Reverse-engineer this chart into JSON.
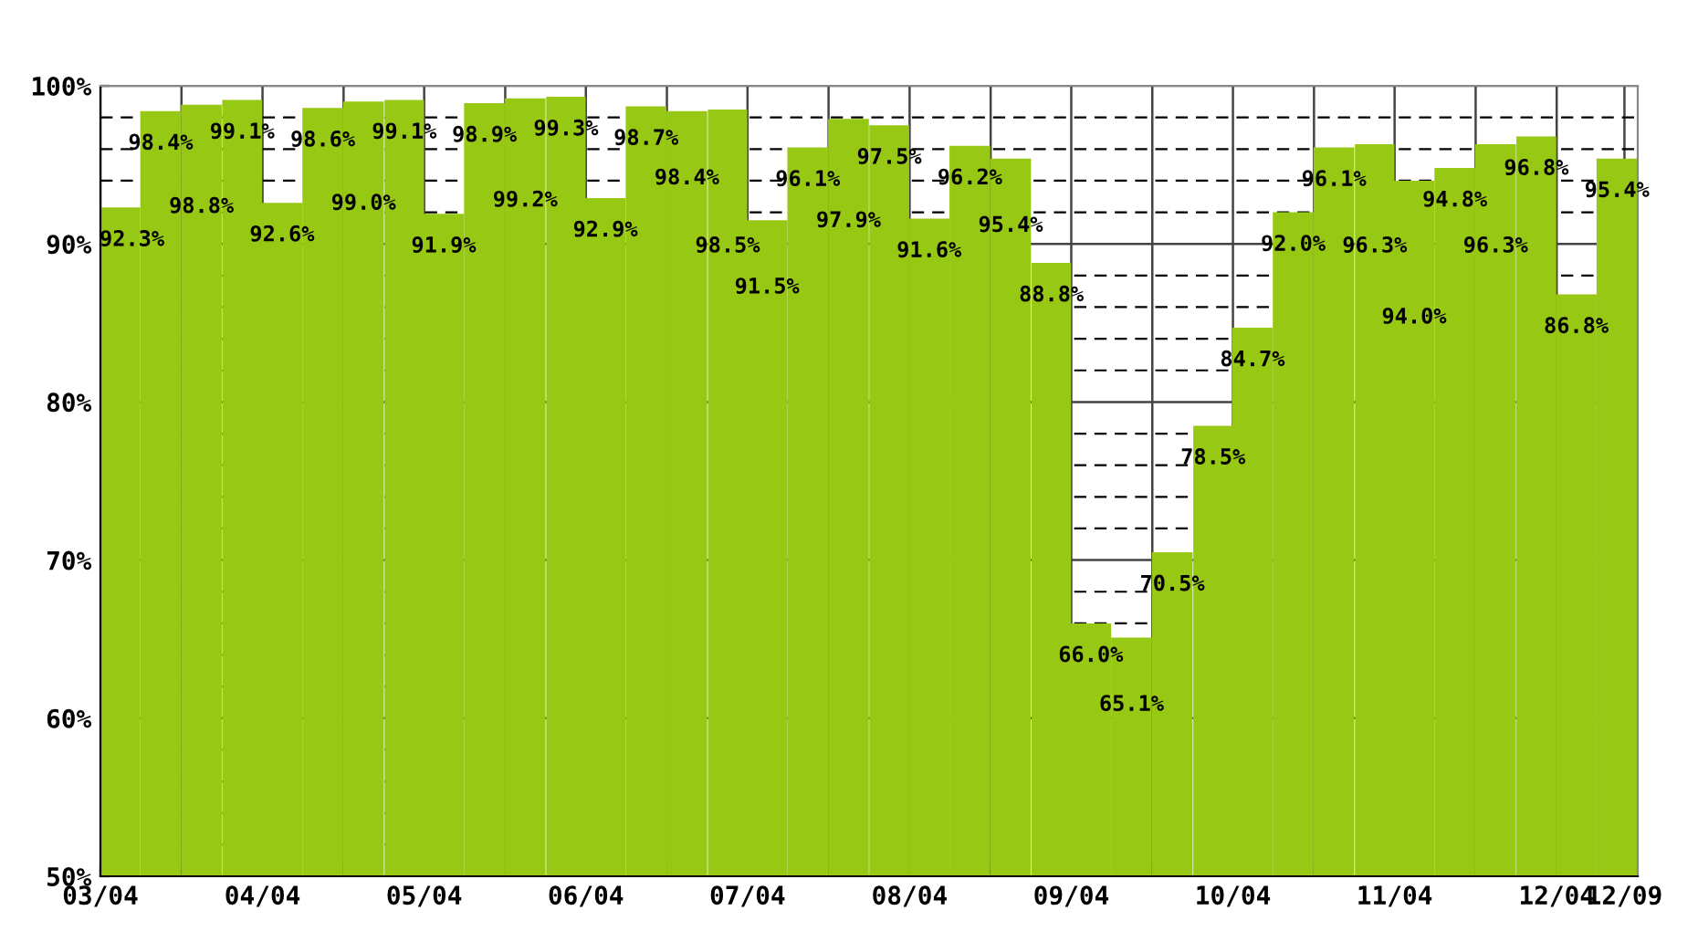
{
  "chart_data": {
    "type": "bar",
    "color": "#96c814",
    "x": [
      "2003-05-15",
      "2003-08-15",
      "2003-11-15",
      "2004-02-15",
      "2004-05-15",
      "2004-08-15",
      "2004-11-15",
      "2005-02-15",
      "2005-05-15",
      "2005-08-15",
      "2005-11-15",
      "2006-02-15",
      "2006-05-15",
      "2006-08-15",
      "2006-11-15",
      "2007-02-15",
      "2007-05-15",
      "2007-08-15",
      "2007-11-15",
      "2008-02-15",
      "2008-05-15",
      "2008-08-15",
      "2008-11-15",
      "2009-02-15",
      "2009-05-15",
      "2009-08-15",
      "2009-11-15",
      "2010-02-15",
      "2010-05-15",
      "2010-08-15",
      "2010-11-15",
      "2011-02-15",
      "2011-05-15",
      "2011-08-15",
      "2011-11-15",
      "2012-02-15",
      "2012-05-15",
      "2012-08-15"
    ],
    "values": [
      92.3,
      98.4,
      98.8,
      99.1,
      92.6,
      98.6,
      99.0,
      99.1,
      91.9,
      98.9,
      99.2,
      99.3,
      92.9,
      98.7,
      98.4,
      98.5,
      91.5,
      96.1,
      97.9,
      97.5,
      91.6,
      96.2,
      95.4,
      88.8,
      66.0,
      65.1,
      70.5,
      78.5,
      84.7,
      92.0,
      96.1,
      96.3,
      94.0,
      94.8,
      96.3,
      96.8,
      86.8,
      95.4
    ],
    "value_labels": [
      "92.3%",
      "98.4%",
      "98.8%",
      "99.1%",
      "92.6%",
      "98.6%",
      "99.0%",
      "99.1%",
      "91.9%",
      "98.9%",
      "99.2%",
      "99.3%",
      "92.9%",
      "98.7%",
      "98.4%",
      "98.5%",
      "91.5%",
      "96.1%",
      "97.9%",
      "97.5%",
      "91.6%",
      "96.2%",
      "95.4%",
      "88.8%",
      "66.0%",
      "65.1%",
      "70.5%",
      "78.5%",
      "84.7%",
      "92.0%",
      "96.1%",
      "96.3%",
      "94.0%",
      "94.8%",
      "96.3%",
      "96.8%",
      "86.8%",
      "95.4%"
    ],
    "xlim": [
      "2003-04",
      "2012-10"
    ],
    "xticks": [
      {
        "value": "2003-04",
        "label": "03/04"
      },
      {
        "value": "2003-10",
        "label": null
      },
      {
        "value": "2004-04",
        "label": "04/04"
      },
      {
        "value": "2004-10",
        "label": null
      },
      {
        "value": "2005-04",
        "label": "05/04"
      },
      {
        "value": "2005-10",
        "label": null
      },
      {
        "value": "2006-04",
        "label": "06/04"
      },
      {
        "value": "2006-10",
        "label": null
      },
      {
        "value": "2007-04",
        "label": "07/04"
      },
      {
        "value": "2007-10",
        "label": null
      },
      {
        "value": "2008-04",
        "label": "08/04"
      },
      {
        "value": "2008-10",
        "label": null
      },
      {
        "value": "2009-04",
        "label": "09/04"
      },
      {
        "value": "2009-10",
        "label": null
      },
      {
        "value": "2010-04",
        "label": "10/04"
      },
      {
        "value": "2010-10",
        "label": null
      },
      {
        "value": "2011-04",
        "label": "11/04"
      },
      {
        "value": "2011-10",
        "label": null
      },
      {
        "value": "2012-04",
        "label": "12/04"
      },
      {
        "value": "2012-09",
        "label": "12/09"
      }
    ],
    "ylim": [
      50,
      100
    ],
    "yticks": [
      {
        "value": 50,
        "label": "50%"
      },
      {
        "value": 60,
        "label": "60%"
      },
      {
        "value": 70,
        "label": "70%"
      },
      {
        "value": 80,
        "label": "80%"
      },
      {
        "value": 90,
        "label": "90%"
      },
      {
        "value": 100,
        "label": "100%"
      }
    ],
    "grid": true
  }
}
